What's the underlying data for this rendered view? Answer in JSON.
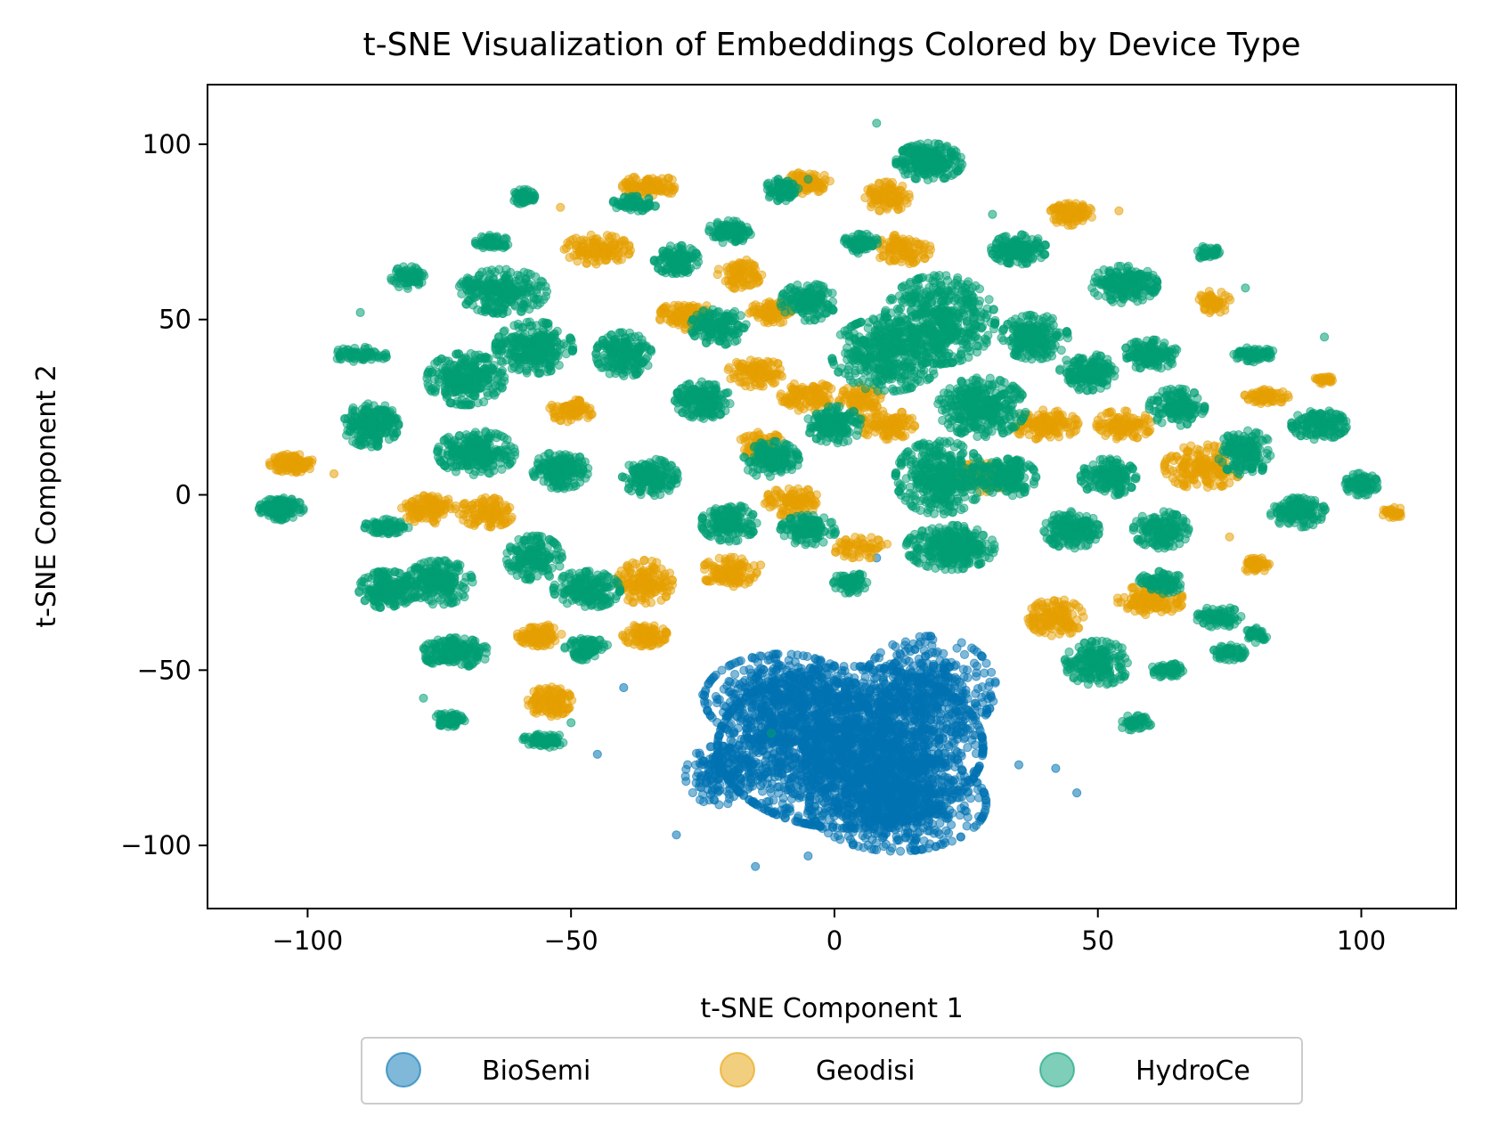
{
  "chart_data": {
    "type": "scatter",
    "title": "t-SNE Visualization of Embeddings Colored by Device Type",
    "xlabel": "t-SNE Component 1",
    "ylabel": "t-SNE Component 2",
    "xlim": [
      -119,
      118
    ],
    "ylim": [
      -118,
      117
    ],
    "xticks": [
      -100,
      -50,
      0,
      50,
      100
    ],
    "xtick_labels": [
      "−100",
      "−50",
      "0",
      "50",
      "100"
    ],
    "yticks": [
      -100,
      -50,
      0,
      50,
      100
    ],
    "ytick_labels": [
      "−100",
      "−50",
      "0",
      "50",
      "100"
    ],
    "legend_position": "bottom-center",
    "series": [
      {
        "name": "BioSemi",
        "color": "#0072b2",
        "description": "one dense blob at the lower center",
        "clusters": [
          {
            "x": 3,
            "y": -72,
            "rx": 24,
            "ry": 22,
            "n": 2200
          },
          {
            "x": 12,
            "y": -88,
            "rx": 16,
            "ry": 13,
            "n": 700
          },
          {
            "x": -10,
            "y": -58,
            "rx": 14,
            "ry": 12,
            "n": 500
          },
          {
            "x": 18,
            "y": -55,
            "rx": 12,
            "ry": 14,
            "n": 400
          },
          {
            "x": -22,
            "y": -80,
            "rx": 6,
            "ry": 8,
            "n": 150
          }
        ],
        "outliers": [
          [
            -45,
            -74
          ],
          [
            -30,
            -97
          ],
          [
            -15,
            -106
          ],
          [
            -5,
            -103
          ],
          [
            46,
            -85
          ],
          [
            42,
            -78
          ],
          [
            35,
            -77
          ],
          [
            -40,
            -55
          ],
          [
            8,
            -18
          ],
          [
            28,
            -62
          ],
          [
            -25,
            -57
          ]
        ]
      },
      {
        "name": "Geodisi",
        "color": "#e69f00",
        "description": "many small clusters across the upper half",
        "clusters": [
          {
            "x": -103,
            "y": 9,
            "rx": 4,
            "ry": 2.5,
            "n": 120
          },
          {
            "x": -77,
            "y": -4,
            "rx": 5,
            "ry": 4,
            "n": 120
          },
          {
            "x": -66,
            "y": -5,
            "rx": 5,
            "ry": 4,
            "n": 120
          },
          {
            "x": -56,
            "y": -40,
            "rx": 4,
            "ry": 3,
            "n": 100
          },
          {
            "x": -54,
            "y": -59,
            "rx": 4,
            "ry": 4,
            "n": 130
          },
          {
            "x": -50,
            "y": 24,
            "rx": 4,
            "ry": 3,
            "n": 90
          },
          {
            "x": -45,
            "y": 70,
            "rx": 6,
            "ry": 4,
            "n": 130
          },
          {
            "x": -35,
            "y": 88,
            "rx": 5,
            "ry": 3,
            "n": 110
          },
          {
            "x": -28,
            "y": 51,
            "rx": 5,
            "ry": 4,
            "n": 120
          },
          {
            "x": -36,
            "y": -25,
            "rx": 5,
            "ry": 6,
            "n": 150
          },
          {
            "x": -36,
            "y": -40,
            "rx": 4,
            "ry": 3,
            "n": 100
          },
          {
            "x": -20,
            "y": -22,
            "rx": 5,
            "ry": 4,
            "n": 120
          },
          {
            "x": -18,
            "y": 63,
            "rx": 4,
            "ry": 4,
            "n": 90
          },
          {
            "x": -15,
            "y": 35,
            "rx": 5,
            "ry": 4,
            "n": 110
          },
          {
            "x": -14,
            "y": 14,
            "rx": 4,
            "ry": 4,
            "n": 90
          },
          {
            "x": -12,
            "y": 52,
            "rx": 4,
            "ry": 3,
            "n": 90
          },
          {
            "x": -8,
            "y": -2,
            "rx": 5,
            "ry": 4,
            "n": 100
          },
          {
            "x": -5,
            "y": 28,
            "rx": 5,
            "ry": 4,
            "n": 110
          },
          {
            "x": -5,
            "y": 89,
            "rx": 4,
            "ry": 3,
            "n": 100
          },
          {
            "x": 5,
            "y": 27,
            "rx": 4,
            "ry": 4,
            "n": 90
          },
          {
            "x": 10,
            "y": 85,
            "rx": 4,
            "ry": 4,
            "n": 110
          },
          {
            "x": 13,
            "y": 70,
            "rx": 5,
            "ry": 4,
            "n": 110
          },
          {
            "x": 10,
            "y": 20,
            "rx": 5,
            "ry": 4,
            "n": 100
          },
          {
            "x": 28,
            "y": 5,
            "rx": 5,
            "ry": 4,
            "n": 100
          },
          {
            "x": 45,
            "y": 80,
            "rx": 4,
            "ry": 3,
            "n": 100
          },
          {
            "x": 40,
            "y": 20,
            "rx": 6,
            "ry": 4,
            "n": 130
          },
          {
            "x": 42,
            "y": -35,
            "rx": 5,
            "ry": 5,
            "n": 140
          },
          {
            "x": 55,
            "y": 20,
            "rx": 5,
            "ry": 4,
            "n": 110
          },
          {
            "x": 60,
            "y": -30,
            "rx": 6,
            "ry": 4,
            "n": 130
          },
          {
            "x": 70,
            "y": 8,
            "rx": 7,
            "ry": 6,
            "n": 170
          },
          {
            "x": 72,
            "y": 55,
            "rx": 3,
            "ry": 3,
            "n": 60
          },
          {
            "x": 82,
            "y": 28,
            "rx": 4,
            "ry": 2,
            "n": 70
          },
          {
            "x": 80,
            "y": -20,
            "rx": 3,
            "ry": 2,
            "n": 50
          },
          {
            "x": 106,
            "y": -5,
            "rx": 2,
            "ry": 1.5,
            "n": 30
          },
          {
            "x": 93,
            "y": 33,
            "rx": 2,
            "ry": 1.5,
            "n": 25
          },
          {
            "x": 5,
            "y": -15,
            "rx": 5,
            "ry": 3,
            "n": 60
          }
        ],
        "outliers": [
          [
            -95,
            6
          ],
          [
            54,
            81
          ],
          [
            -52,
            82
          ],
          [
            -14,
            -20
          ],
          [
            75,
            -12
          ]
        ]
      },
      {
        "name": "HydroCe",
        "color": "#009e73",
        "description": "many clusters, largest mass in the upper center",
        "clusters": [
          {
            "x": -105,
            "y": -4,
            "rx": 4,
            "ry": 3,
            "n": 140
          },
          {
            "x": -88,
            "y": 20,
            "rx": 5,
            "ry": 6,
            "n": 230
          },
          {
            "x": -85,
            "y": -27,
            "rx": 5,
            "ry": 5,
            "n": 210
          },
          {
            "x": -75,
            "y": -25,
            "rx": 6,
            "ry": 6,
            "n": 220
          },
          {
            "x": -72,
            "y": -45,
            "rx": 6,
            "ry": 4,
            "n": 180
          },
          {
            "x": -73,
            "y": -64,
            "rx": 3,
            "ry": 2,
            "n": 70
          },
          {
            "x": -85,
            "y": -9,
            "rx": 4,
            "ry": 2,
            "n": 80
          },
          {
            "x": -81,
            "y": 62,
            "rx": 3,
            "ry": 3,
            "n": 70
          },
          {
            "x": -90,
            "y": 40,
            "rx": 5,
            "ry": 2,
            "n": 80
          },
          {
            "x": -70,
            "y": 33,
            "rx": 7,
            "ry": 7,
            "n": 280
          },
          {
            "x": -68,
            "y": 12,
            "rx": 7,
            "ry": 6,
            "n": 260
          },
          {
            "x": -63,
            "y": 58,
            "rx": 8,
            "ry": 6,
            "n": 280
          },
          {
            "x": -65,
            "y": 72,
            "rx": 3,
            "ry": 2,
            "n": 70
          },
          {
            "x": -59,
            "y": 85,
            "rx": 2,
            "ry": 2,
            "n": 50
          },
          {
            "x": -57,
            "y": 42,
            "rx": 7,
            "ry": 7,
            "n": 280
          },
          {
            "x": -52,
            "y": 7,
            "rx": 5,
            "ry": 5,
            "n": 180
          },
          {
            "x": -57,
            "y": -18,
            "rx": 5,
            "ry": 6,
            "n": 170
          },
          {
            "x": -55,
            "y": -70,
            "rx": 4,
            "ry": 2,
            "n": 80
          },
          {
            "x": -47,
            "y": -27,
            "rx": 6,
            "ry": 5,
            "n": 190
          },
          {
            "x": -47,
            "y": -44,
            "rx": 4,
            "ry": 3,
            "n": 100
          },
          {
            "x": -40,
            "y": 40,
            "rx": 5,
            "ry": 6,
            "n": 200
          },
          {
            "x": -38,
            "y": 83,
            "rx": 4,
            "ry": 2,
            "n": 80
          },
          {
            "x": -35,
            "y": 5,
            "rx": 5,
            "ry": 5,
            "n": 180
          },
          {
            "x": -30,
            "y": 67,
            "rx": 4,
            "ry": 4,
            "n": 130
          },
          {
            "x": -25,
            "y": 27,
            "rx": 5,
            "ry": 5,
            "n": 180
          },
          {
            "x": -22,
            "y": 48,
            "rx": 5,
            "ry": 5,
            "n": 160
          },
          {
            "x": -20,
            "y": -8,
            "rx": 5,
            "ry": 5,
            "n": 170
          },
          {
            "x": -20,
            "y": 75,
            "rx": 4,
            "ry": 3,
            "n": 120
          },
          {
            "x": -12,
            "y": 10,
            "rx": 5,
            "ry": 5,
            "n": 170
          },
          {
            "x": -10,
            "y": 87,
            "rx": 3,
            "ry": 3,
            "n": 90
          },
          {
            "x": -5,
            "y": 55,
            "rx": 5,
            "ry": 5,
            "n": 160
          },
          {
            "x": -5,
            "y": -10,
            "rx": 5,
            "ry": 4,
            "n": 140
          },
          {
            "x": 0,
            "y": 20,
            "rx": 5,
            "ry": 5,
            "n": 160
          },
          {
            "x": 3,
            "y": -25,
            "rx": 3,
            "ry": 3,
            "n": 70
          },
          {
            "x": 5,
            "y": 72,
            "rx": 3,
            "ry": 3,
            "n": 80
          },
          {
            "x": 10,
            "y": 40,
            "rx": 10,
            "ry": 10,
            "n": 420
          },
          {
            "x": 18,
            "y": 95,
            "rx": 6,
            "ry": 5,
            "n": 250
          },
          {
            "x": 20,
            "y": 50,
            "rx": 10,
            "ry": 12,
            "n": 500
          },
          {
            "x": 20,
            "y": 5,
            "rx": 8,
            "ry": 10,
            "n": 400
          },
          {
            "x": 22,
            "y": -15,
            "rx": 8,
            "ry": 6,
            "n": 300
          },
          {
            "x": 28,
            "y": 25,
            "rx": 8,
            "ry": 8,
            "n": 350
          },
          {
            "x": 35,
            "y": 70,
            "rx": 5,
            "ry": 4,
            "n": 160
          },
          {
            "x": 38,
            "y": 45,
            "rx": 6,
            "ry": 6,
            "n": 220
          },
          {
            "x": 33,
            "y": 5,
            "rx": 5,
            "ry": 5,
            "n": 170
          },
          {
            "x": 45,
            "y": -10,
            "rx": 5,
            "ry": 5,
            "n": 170
          },
          {
            "x": 48,
            "y": 35,
            "rx": 5,
            "ry": 5,
            "n": 170
          },
          {
            "x": 50,
            "y": -48,
            "rx": 6,
            "ry": 6,
            "n": 200
          },
          {
            "x": 52,
            "y": 5,
            "rx": 5,
            "ry": 5,
            "n": 170
          },
          {
            "x": 55,
            "y": 60,
            "rx": 6,
            "ry": 5,
            "n": 200
          },
          {
            "x": 60,
            "y": 40,
            "rx": 5,
            "ry": 4,
            "n": 150
          },
          {
            "x": 62,
            "y": -10,
            "rx": 5,
            "ry": 5,
            "n": 170
          },
          {
            "x": 62,
            "y": -25,
            "rx": 4,
            "ry": 3,
            "n": 100
          },
          {
            "x": 63,
            "y": -50,
            "rx": 3,
            "ry": 2,
            "n": 60
          },
          {
            "x": 65,
            "y": 25,
            "rx": 5,
            "ry": 5,
            "n": 160
          },
          {
            "x": 71,
            "y": 69,
            "rx": 2,
            "ry": 2,
            "n": 40
          },
          {
            "x": 73,
            "y": -35,
            "rx": 4,
            "ry": 3,
            "n": 90
          },
          {
            "x": 75,
            "y": -45,
            "rx": 3,
            "ry": 2,
            "n": 60
          },
          {
            "x": 78,
            "y": 12,
            "rx": 5,
            "ry": 6,
            "n": 170
          },
          {
            "x": 80,
            "y": 40,
            "rx": 4,
            "ry": 2,
            "n": 70
          },
          {
            "x": 80,
            "y": -40,
            "rx": 2,
            "ry": 2,
            "n": 40
          },
          {
            "x": 88,
            "y": -5,
            "rx": 5,
            "ry": 4,
            "n": 150
          },
          {
            "x": 92,
            "y": 20,
            "rx": 5,
            "ry": 4,
            "n": 150
          },
          {
            "x": 100,
            "y": 3,
            "rx": 3,
            "ry": 3,
            "n": 80
          },
          {
            "x": 57,
            "y": -65,
            "rx": 3,
            "ry": 2,
            "n": 50
          }
        ],
        "outliers": [
          [
            -12,
            -68
          ],
          [
            8,
            106
          ],
          [
            -5,
            90
          ],
          [
            78,
            59
          ],
          [
            93,
            45
          ],
          [
            -90,
            52
          ],
          [
            30,
            80
          ],
          [
            58,
            63
          ],
          [
            -50,
            -65
          ],
          [
            -78,
            -58
          ]
        ]
      }
    ],
    "legend": {
      "entries": [
        "BioSemi",
        "Geodisi",
        "HydroCe"
      ]
    }
  }
}
